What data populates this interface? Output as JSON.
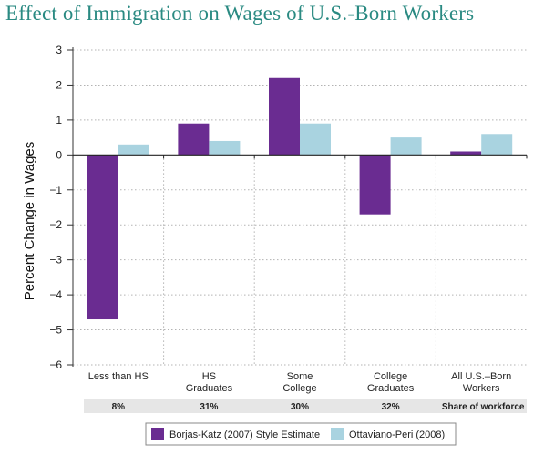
{
  "title": "Effect of Immigration on Wages of U.S.-Born Workers",
  "colors": {
    "title": "#2a8a82",
    "borjas": "#6a2c91",
    "ottaviano": "#a9d3e0",
    "share_band": "#e6e6e6",
    "grid": "#b3b3b3"
  },
  "chart_data": {
    "type": "bar",
    "title": "Effect of Immigration on Wages of U.S.-Born Workers",
    "ylabel": "Percent Change in Wages",
    "xlabel": "",
    "ylim": [
      -6,
      3
    ],
    "yticks": [
      "3",
      "2",
      "1",
      "0",
      "−1",
      "−2",
      "−3",
      "−4",
      "−5",
      "−6"
    ],
    "ytick_values": [
      3,
      2,
      1,
      0,
      -1,
      -2,
      -3,
      -4,
      -5,
      -6
    ],
    "grid": true,
    "categories": [
      [
        "Less than HS"
      ],
      [
        "HS",
        "Graduates"
      ],
      [
        "Some",
        "College"
      ],
      [
        "College",
        "Graduates"
      ],
      [
        "All U.S.–Born",
        "Workers"
      ]
    ],
    "series": [
      {
        "name": "Borjas-Katz (2007) Style Estimate",
        "values": [
          -4.7,
          0.9,
          2.2,
          -1.7,
          0.1
        ]
      },
      {
        "name": "Ottaviano-Peri (2008)",
        "values": [
          0.3,
          0.4,
          0.9,
          0.5,
          0.6
        ]
      }
    ],
    "share_of_workforce": {
      "values": [
        "8%",
        "31%",
        "30%",
        "32%"
      ],
      "label": "Share of workforce"
    },
    "legend_position": "bottom"
  }
}
